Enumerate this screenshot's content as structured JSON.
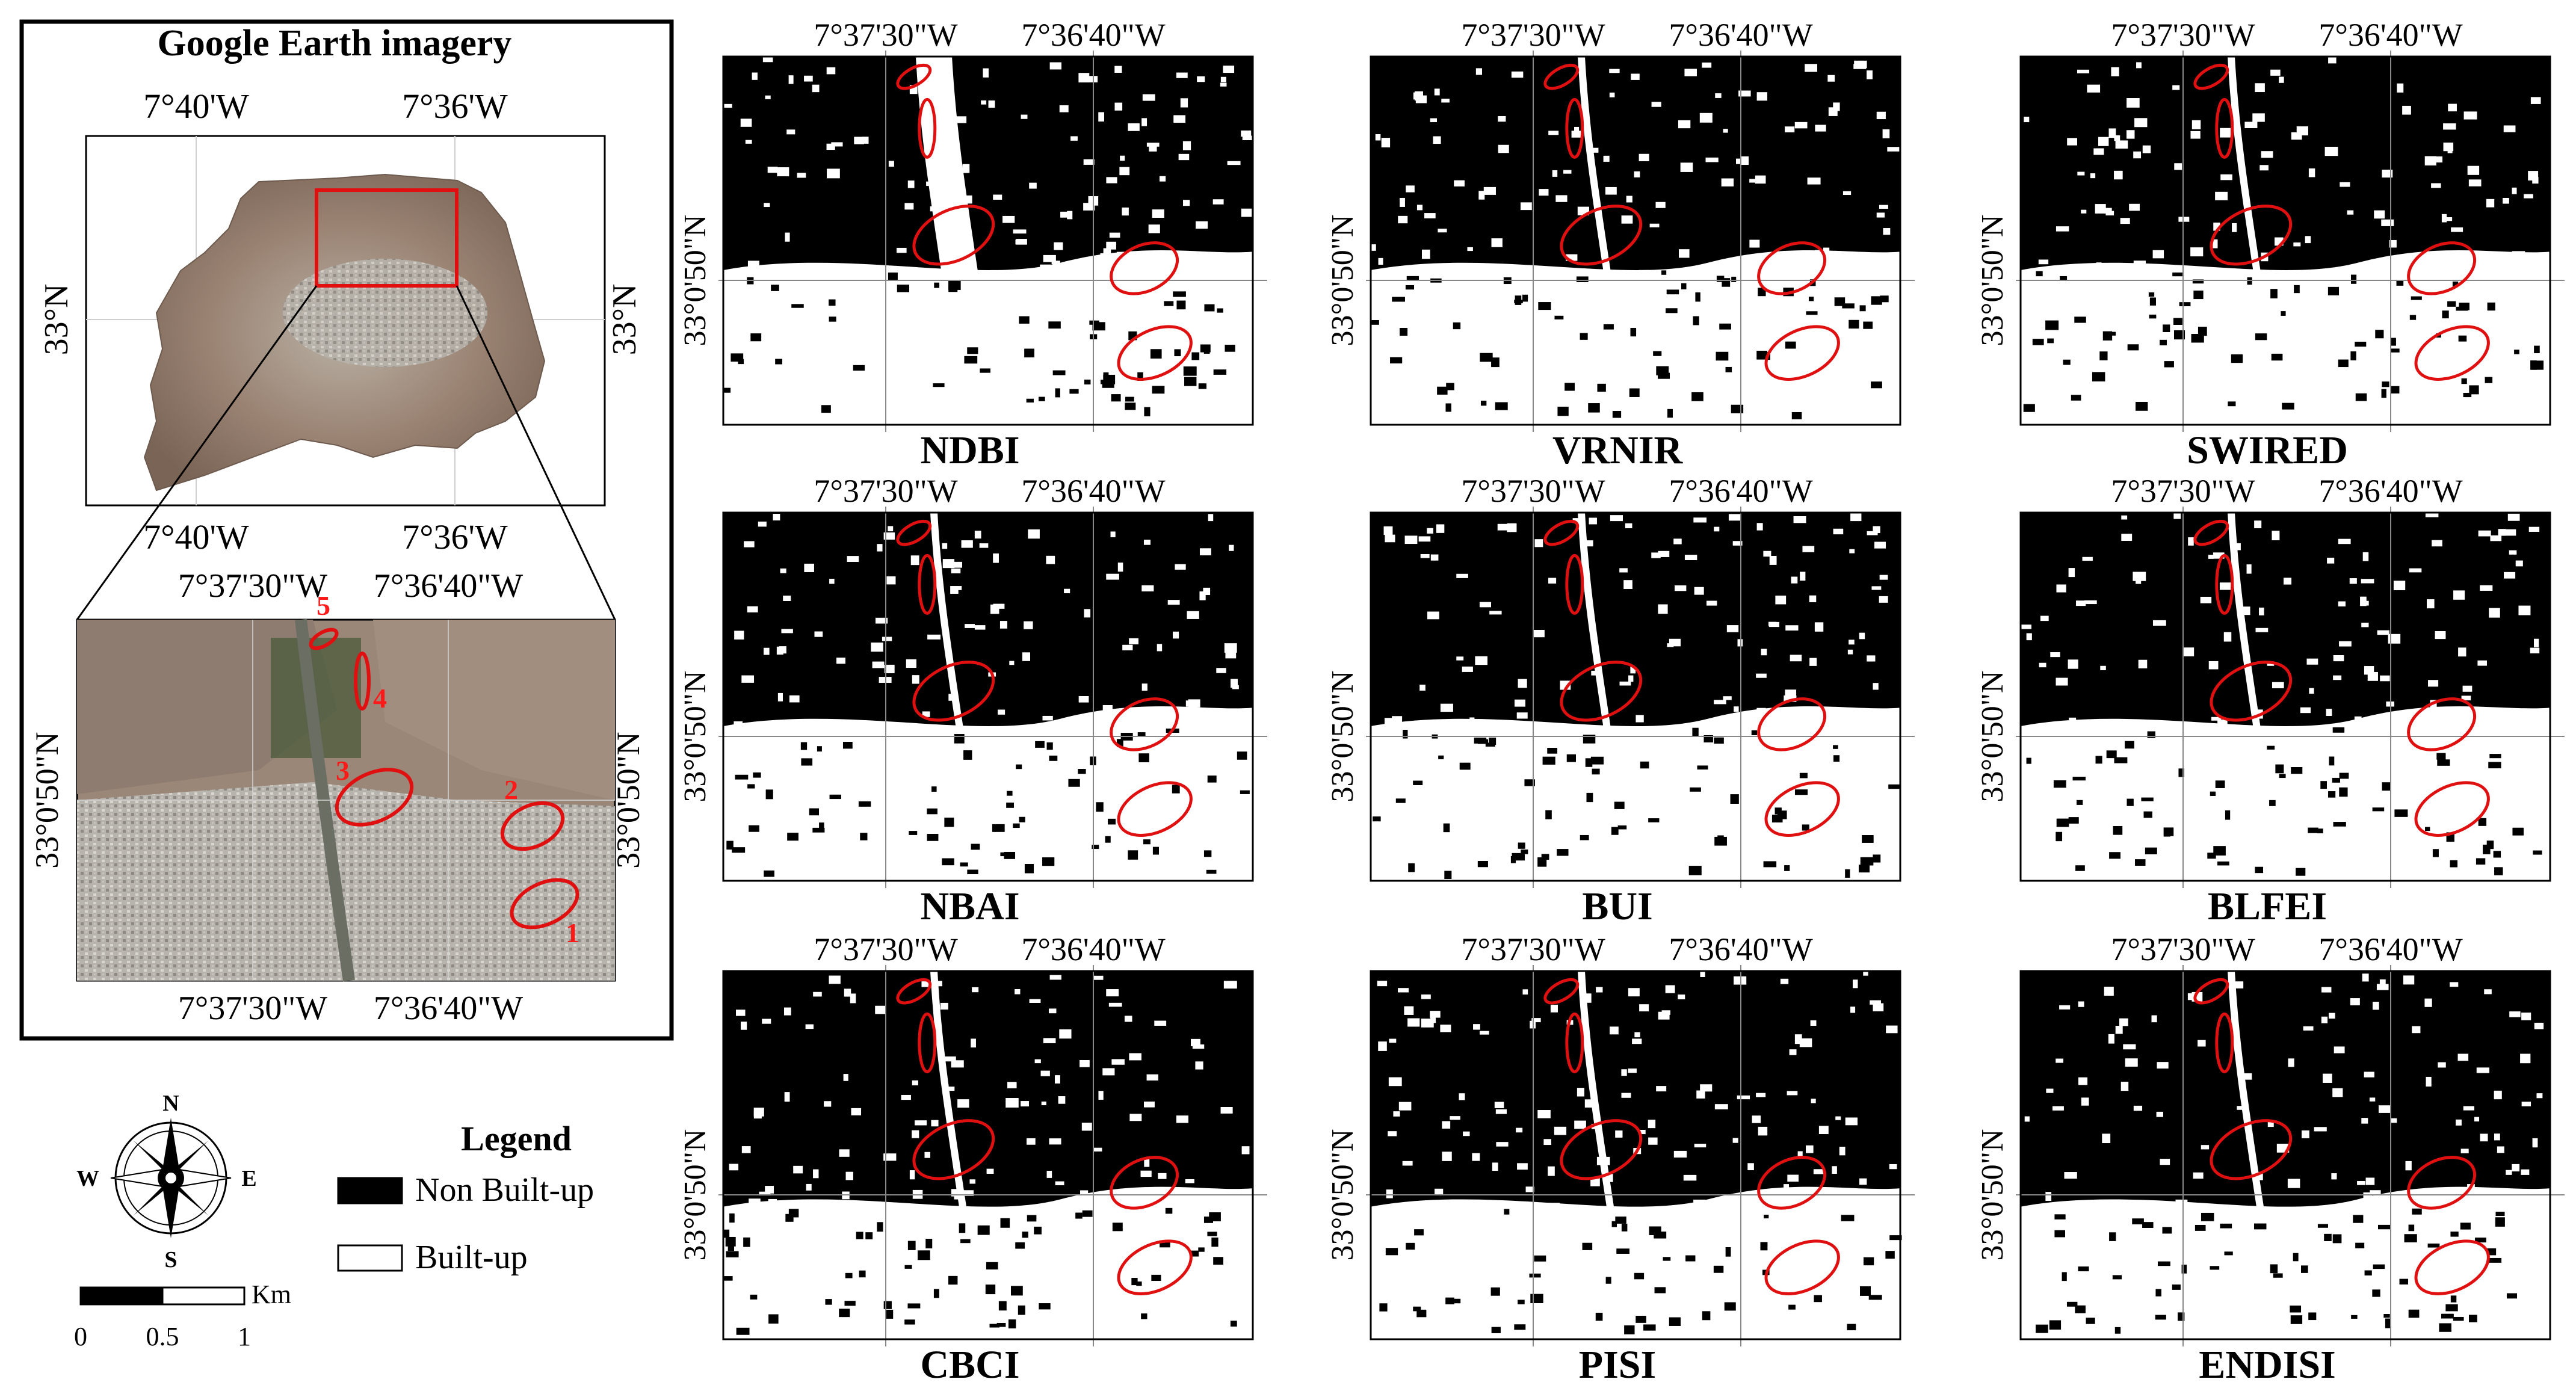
{
  "overview": {
    "title": "Google Earth imagery",
    "lon_top": [
      "7°40'W",
      "7°36'W"
    ],
    "lon_bottom": [
      "7°40'W",
      "7°36'W"
    ],
    "lat_left": "33°N",
    "lat_right": "33°N"
  },
  "zoom": {
    "lon_top": [
      "7°37'30\"W",
      "7°36'40\"W"
    ],
    "lon_bottom": [
      "7°37'30\"W",
      "7°36'40\"W"
    ],
    "lat_left": "33°0'50\"N",
    "lat_right": "33°0'50\"N",
    "markers": [
      "1",
      "2",
      "3",
      "4",
      "5"
    ]
  },
  "panel_axes": {
    "lon": [
      "7°37'30\"W",
      "7°36'40\"W"
    ],
    "lat": "33°0'50\"N"
  },
  "panels": [
    {
      "name": "NDBI"
    },
    {
      "name": "VRNIR"
    },
    {
      "name": "SWIRED"
    },
    {
      "name": "NBAI"
    },
    {
      "name": "BUI"
    },
    {
      "name": "BLFEI"
    },
    {
      "name": "CBCI"
    },
    {
      "name": "PISI"
    },
    {
      "name": "ENDISI"
    }
  ],
  "compass": {
    "n": "N",
    "s": "S",
    "e": "E",
    "w": "W"
  },
  "scale_bar": {
    "unit": "Km",
    "ticks": [
      "0",
      "0.5",
      "1"
    ]
  },
  "legend": {
    "title": "Legend",
    "items": [
      {
        "label": "Non Built-up",
        "color": "#000000"
      },
      {
        "label": "Built-up",
        "color": "#ffffff"
      }
    ]
  },
  "colors": {
    "highlight": "#e01010",
    "marker_text": "#ff1a1a"
  }
}
